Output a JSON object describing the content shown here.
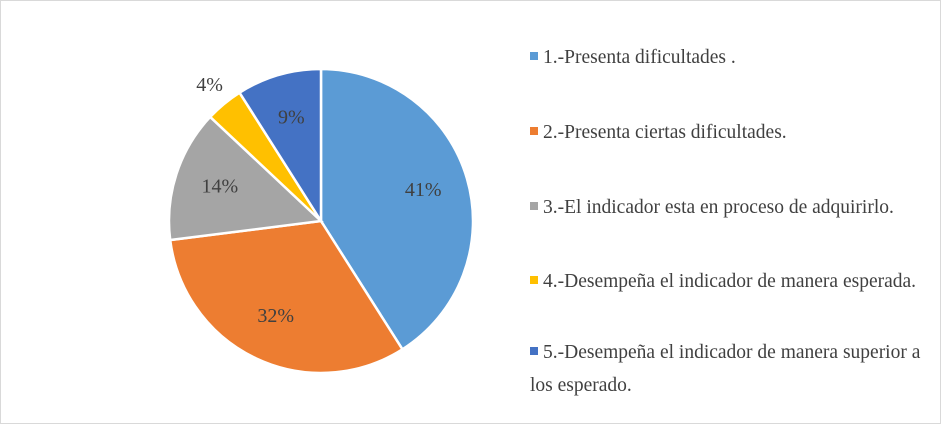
{
  "chart_data": {
    "type": "pie",
    "categories": [
      "1.-Presenta dificultades .",
      "2.-Presenta ciertas dificultades.",
      "3.-El indicador esta en proceso de adquirirlo.",
      "4.-Desempeña el indicador de manera esperada.",
      "5.-Desempeña el indicador de manera superior a los esperado."
    ],
    "values": [
      41,
      32,
      14,
      4,
      9
    ],
    "value_labels": [
      "41%",
      "32%",
      "14%",
      "4%",
      "9%"
    ],
    "colors": [
      "#5b9bd5",
      "#ed7d31",
      "#a5a5a5",
      "#ffc000",
      "#4472c4"
    ],
    "legend": "right"
  }
}
